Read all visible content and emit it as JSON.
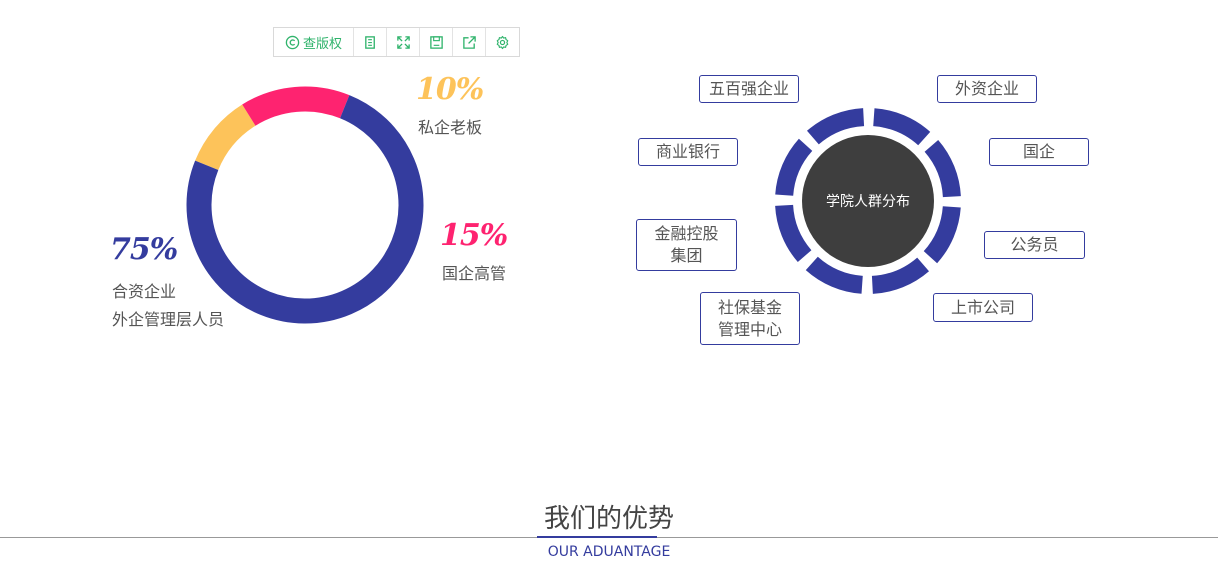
{
  "toolbar": {
    "first_label": "查版权",
    "icons": [
      "copyright-icon",
      "copy-icon",
      "fullscreen-icon",
      "save-icon",
      "share-icon",
      "gear-icon"
    ]
  },
  "donut": {
    "segments": [
      {
        "percent": "10%",
        "value": 10,
        "label": "私企老板",
        "color": "#fdc35a"
      },
      {
        "percent": "15%",
        "value": 15,
        "label": "国企高管",
        "color": "#fe2370"
      },
      {
        "percent": "75%",
        "value": 75,
        "label_line1": "合资企业",
        "label_line2": "外企管理层人员",
        "color": "#343c9e"
      }
    ]
  },
  "distribution": {
    "center_label": "学院人群分布",
    "ring_color": "#343c9e",
    "tags": [
      "五百强企业",
      "外资企业",
      "商业银行",
      "国企",
      "金融控股\n集团",
      "公务员",
      "社保基金\n管理中心",
      "上市公司"
    ]
  },
  "section": {
    "title": "我们的优势",
    "subtitle": "OUR ADUANTAGE"
  }
}
